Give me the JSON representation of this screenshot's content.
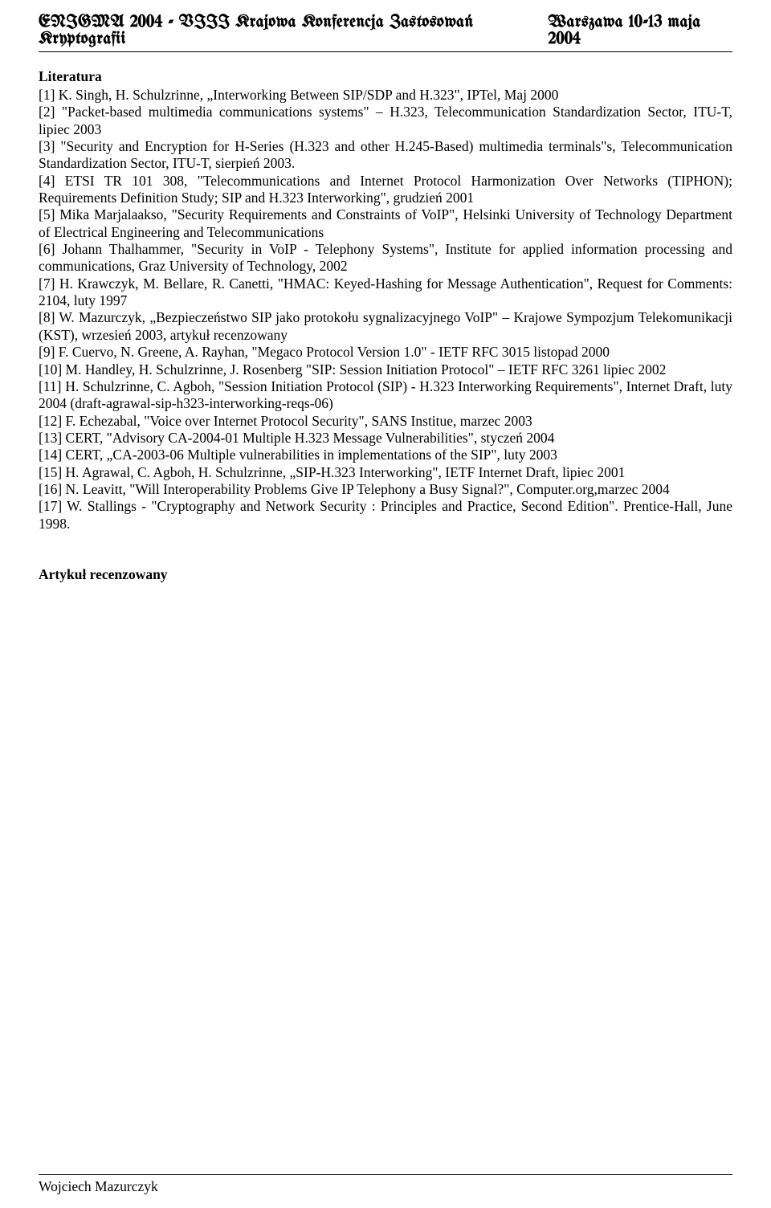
{
  "header": {
    "left": "ENIGMA 2004 - VIII Krajowa Konferencja Zastosowań Kryptografii",
    "right": "Warszawa 10-13 maja 2004"
  },
  "section_title": "Literatura",
  "references": [
    "[1] K. Singh, H. Schulzrinne, „Interworking Between SIP/SDP and H.323\", IPTel, Maj 2000",
    "[2] \"Packet-based multimedia communications systems\" – H.323, Telecommunication Standardization Sector, ITU-T, lipiec 2003",
    "[3] \"Security and Encryption for H-Series (H.323 and other H.245-Based) multimedia terminals\"s, Telecommunication Standardization Sector, ITU-T, sierpień 2003.",
    "[4] ETSI TR 101 308, \"Telecommunications and Internet Protocol Harmonization Over Networks (TIPHON); Requirements Definition Study; SIP and H.323 Interworking\", grudzień 2001",
    "[5] Mika Marjalaakso, \"Security Requirements and Constraints of VoIP\", Helsinki University of Technology Department of Electrical Engineering and Telecommunications",
    "[6] Johann Thalhammer, \"Security in VoIP - Telephony Systems\", Institute for applied information processing and communications, Graz University of Technology, 2002",
    "[7] H. Krawczyk, M. Bellare, R. Canetti, \"HMAC: Keyed-Hashing for Message Authentication\", Request for Comments: 2104, luty 1997",
    "[8] W. Mazurczyk, „Bezpieczeństwo SIP jako protokołu sygnalizacyjnego VoIP\" – Krajowe Sympozjum Telekomunikacji (KST), wrzesień 2003, artykuł recenzowany",
    "[9] F. Cuervo, N. Greene, A. Rayhan, \"Megaco Protocol Version 1.0\" - IETF RFC 3015 listopad 2000",
    "[10] M. Handley, H. Schulzrinne, J. Rosenberg \"SIP: Session Initiation Protocol\" – IETF RFC 3261 lipiec 2002",
    "[11] H. Schulzrinne, C. Agboh, \"Session Initiation Protocol (SIP) - H.323 Interworking Requirements\", Internet Draft, luty 2004 (draft-agrawal-sip-h323-interworking-reqs-06)",
    "[12] F. Echezabal, \"Voice over Internet Protocol Security\", SANS Institue, marzec 2003",
    "[13] CERT, \"Advisory CA-2004-01 Multiple H.323 Message Vulnerabilities\", styczeń 2004",
    "[14] CERT, „CA-2003-06 Multiple vulnerabilities in implementations of the SIP\", luty 2003",
    "[15] H. Agrawal, C. Agboh, H. Schulzrinne, „SIP-H.323 Interworking\", IETF Internet Draft, lipiec 2001",
    "[16] N. Leavitt, \"Will Interoperability Problems Give IP Telephony a Busy Signal?\", Computer.org,marzec 2004",
    "[17] W. Stallings - \"Cryptography and Network Security : Principles and Practice, Second Edition\". Prentice-Hall, June 1998."
  ],
  "reviewed_label": "Artykuł recenzowany",
  "footer_author": "Wojciech Mazurczyk",
  "style": {
    "page_bg": "#ffffff",
    "text_color": "#000000",
    "body_font_size_pt": 13,
    "header_font_size_pt": 16,
    "line_color": "#000000"
  }
}
